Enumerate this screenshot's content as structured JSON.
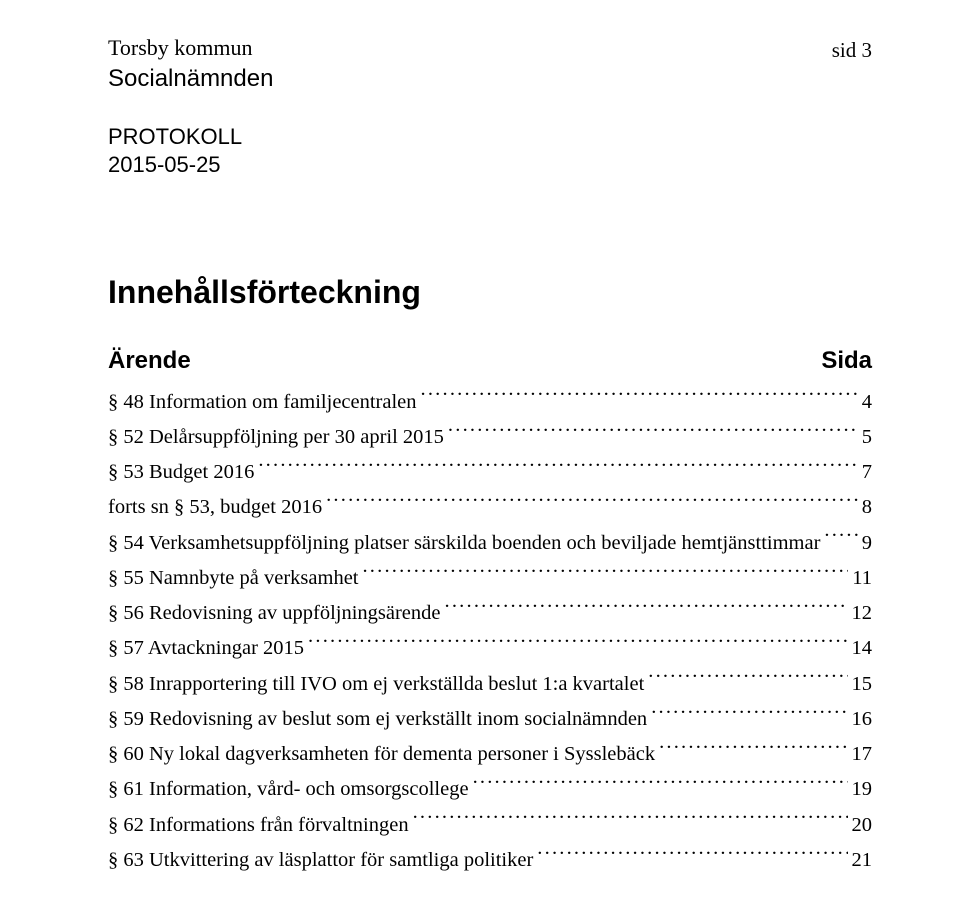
{
  "header": {
    "org": "Torsby kommun",
    "subunit": "Socialnämnden",
    "page_indicator": "sid 3",
    "doc_type": "PROTOKOLL",
    "doc_date": "2015-05-25"
  },
  "toc": {
    "title": "Innehållsförteckning",
    "col_left": "Ärende",
    "col_right": "Sida",
    "entries": [
      {
        "label": "§ 48 Information om familjecentralen",
        "page": "4"
      },
      {
        "label": "§ 52 Delårsuppföljning per 30 april 2015",
        "page": "5"
      },
      {
        "label": "§ 53 Budget 2016",
        "page": "7"
      },
      {
        "label": "forts sn § 53, budget 2016",
        "page": "8"
      },
      {
        "label": "§ 54 Verksamhetsuppföljning platser särskilda boenden och beviljade hemtjänsttimmar",
        "page": "9"
      },
      {
        "label": "§ 55 Namnbyte på verksamhet",
        "page": "11"
      },
      {
        "label": "§ 56 Redovisning av uppföljningsärende",
        "page": "12"
      },
      {
        "label": "§ 57 Avtackningar 2015",
        "page": "14"
      },
      {
        "label": "§ 58 Inrapportering till IVO om ej verkställda beslut 1:a kvartalet",
        "page": "15"
      },
      {
        "label": "§ 59 Redovisning av beslut som ej verkställt inom socialnämnden",
        "page": "16"
      },
      {
        "label": "§ 60 Ny lokal dagverksamheten för dementa personer i Sysslebäck",
        "page": "17"
      },
      {
        "label": "§ 61 Information, vård- och omsorgscollege",
        "page": "19"
      },
      {
        "label": "§ 62 Informations från förvaltningen",
        "page": "20"
      },
      {
        "label": "§ 63 Utkvittering av läsplattor för samtliga politiker",
        "page": "21"
      }
    ]
  }
}
